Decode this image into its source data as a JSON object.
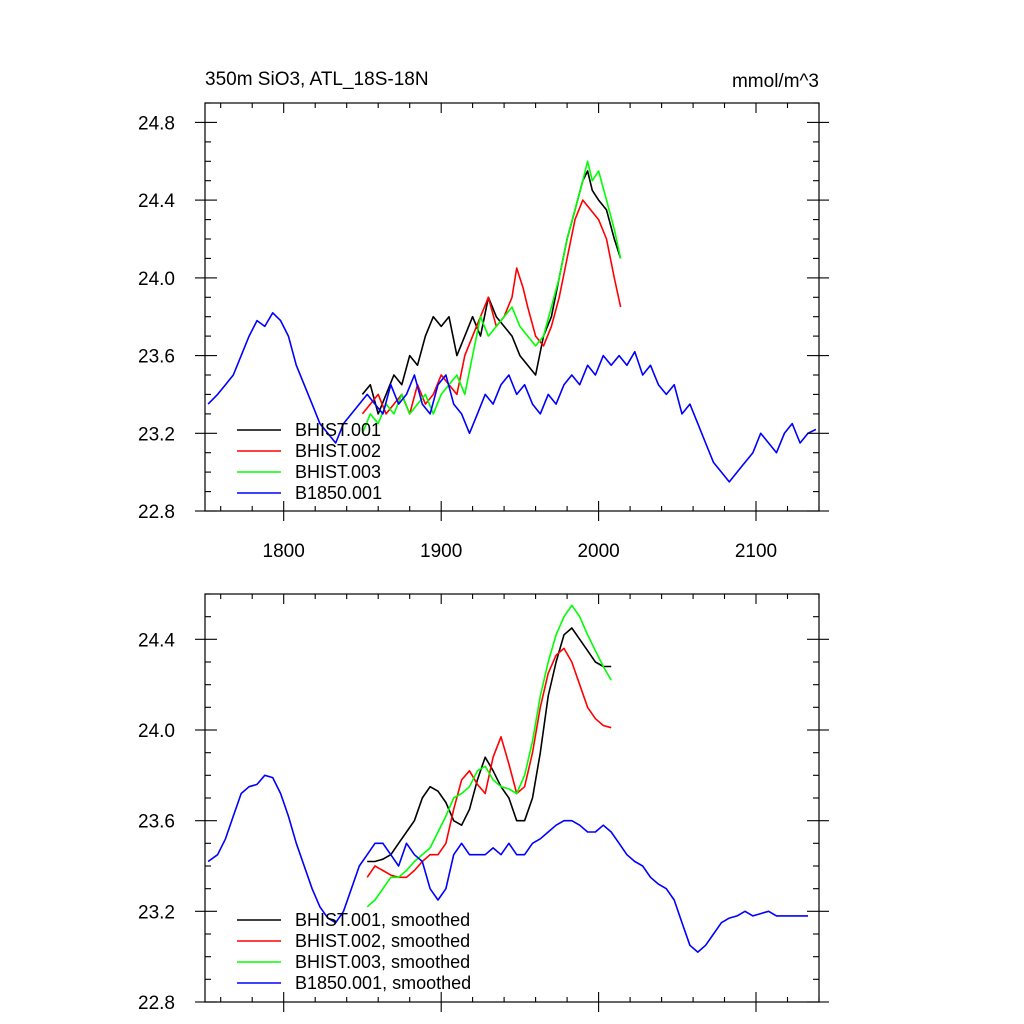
{
  "chart_data": [
    {
      "type": "line",
      "title": "350m SiO3, ATL_18S-18N",
      "units": "mmol/m^3",
      "xlabel": "",
      "ylabel": "",
      "xlim": [
        1750,
        2140
      ],
      "ylim": [
        22.8,
        24.9
      ],
      "xticks": [
        1800,
        1900,
        2000,
        2100
      ],
      "xtick_labels": [
        "1800",
        "1900",
        "2000",
        "2100"
      ],
      "yticks": [
        22.8,
        23.2,
        23.6,
        24.0,
        24.4,
        24.8
      ],
      "ytick_labels": [
        "22.8",
        "23.2",
        "23.6",
        "24.0",
        "24.4",
        "24.8"
      ],
      "show_xtick_labels": true,
      "legend_position": "bottom-left",
      "grid": false,
      "series": [
        {
          "name": "BHIST.001",
          "color": "#000000",
          "x": [
            1850,
            1855,
            1860,
            1865,
            1870,
            1875,
            1880,
            1885,
            1890,
            1895,
            1900,
            1905,
            1910,
            1915,
            1920,
            1925,
            1930,
            1935,
            1940,
            1945,
            1950,
            1955,
            1960,
            1965,
            1970,
            1975,
            1980,
            1985,
            1990,
            1993,
            1996,
            2000,
            2005,
            2010,
            2014
          ],
          "y": [
            23.4,
            23.45,
            23.3,
            23.4,
            23.5,
            23.45,
            23.6,
            23.55,
            23.7,
            23.8,
            23.75,
            23.8,
            23.6,
            23.7,
            23.8,
            23.7,
            23.9,
            23.8,
            23.75,
            23.7,
            23.6,
            23.55,
            23.5,
            23.7,
            23.8,
            24.0,
            24.2,
            24.35,
            24.5,
            24.55,
            24.45,
            24.4,
            24.35,
            24.2,
            24.1
          ]
        },
        {
          "name": "BHIST.002",
          "color": "#ff0000",
          "x": [
            1850,
            1855,
            1860,
            1865,
            1870,
            1875,
            1880,
            1885,
            1890,
            1895,
            1900,
            1905,
            1910,
            1915,
            1920,
            1925,
            1930,
            1935,
            1940,
            1945,
            1948,
            1952,
            1955,
            1960,
            1965,
            1970,
            1975,
            1980,
            1985,
            1990,
            1995,
            2000,
            2005,
            2010,
            2014
          ],
          "y": [
            23.3,
            23.35,
            23.4,
            23.3,
            23.35,
            23.4,
            23.3,
            23.45,
            23.35,
            23.4,
            23.5,
            23.45,
            23.4,
            23.6,
            23.7,
            23.8,
            23.9,
            23.75,
            23.8,
            23.9,
            24.05,
            23.95,
            23.85,
            23.7,
            23.65,
            23.75,
            23.9,
            24.1,
            24.3,
            24.4,
            24.35,
            24.3,
            24.2,
            24.0,
            23.85
          ]
        },
        {
          "name": "BHIST.003",
          "color": "#00ff00",
          "x": [
            1850,
            1855,
            1860,
            1865,
            1870,
            1875,
            1880,
            1885,
            1890,
            1895,
            1900,
            1905,
            1910,
            1915,
            1920,
            1925,
            1930,
            1935,
            1940,
            1945,
            1950,
            1955,
            1960,
            1965,
            1970,
            1975,
            1980,
            1985,
            1990,
            1993,
            1996,
            2000,
            2005,
            2010,
            2014
          ],
          "y": [
            23.2,
            23.3,
            23.25,
            23.35,
            23.3,
            23.4,
            23.3,
            23.35,
            23.4,
            23.3,
            23.4,
            23.45,
            23.5,
            23.4,
            23.6,
            23.8,
            23.7,
            23.75,
            23.8,
            23.85,
            23.75,
            23.7,
            23.65,
            23.7,
            23.85,
            24.0,
            24.2,
            24.35,
            24.5,
            24.6,
            24.5,
            24.55,
            24.4,
            24.25,
            24.1
          ]
        },
        {
          "name": "B1850.001",
          "color": "#0000ff",
          "x": [
            1752,
            1758,
            1763,
            1768,
            1773,
            1778,
            1783,
            1788,
            1793,
            1798,
            1803,
            1808,
            1813,
            1818,
            1823,
            1828,
            1833,
            1838,
            1843,
            1848,
            1853,
            1858,
            1863,
            1868,
            1873,
            1878,
            1883,
            1888,
            1893,
            1898,
            1903,
            1908,
            1913,
            1918,
            1923,
            1928,
            1933,
            1938,
            1943,
            1948,
            1953,
            1958,
            1963,
            1968,
            1973,
            1978,
            1983,
            1988,
            1993,
            1998,
            2003,
            2008,
            2013,
            2018,
            2023,
            2028,
            2033,
            2038,
            2043,
            2048,
            2053,
            2058,
            2063,
            2068,
            2073,
            2078,
            2083,
            2088,
            2093,
            2098,
            2103,
            2108,
            2113,
            2118,
            2123,
            2128,
            2133,
            2138
          ],
          "y": [
            23.35,
            23.4,
            23.45,
            23.5,
            23.6,
            23.7,
            23.78,
            23.75,
            23.82,
            23.78,
            23.7,
            23.55,
            23.45,
            23.35,
            23.25,
            23.2,
            23.15,
            23.25,
            23.3,
            23.35,
            23.4,
            23.35,
            23.3,
            23.45,
            23.35,
            23.4,
            23.5,
            23.35,
            23.3,
            23.45,
            23.5,
            23.35,
            23.3,
            23.2,
            23.3,
            23.4,
            23.35,
            23.45,
            23.5,
            23.4,
            23.45,
            23.35,
            23.3,
            23.4,
            23.35,
            23.45,
            23.5,
            23.45,
            23.55,
            23.5,
            23.6,
            23.55,
            23.6,
            23.55,
            23.62,
            23.5,
            23.55,
            23.45,
            23.4,
            23.45,
            23.3,
            23.35,
            23.25,
            23.15,
            23.05,
            23.0,
            22.95,
            23.0,
            23.05,
            23.1,
            23.2,
            23.15,
            23.1,
            23.2,
            23.25,
            23.15,
            23.2,
            23.22
          ]
        }
      ],
      "legend": [
        {
          "label": "BHIST.001",
          "color": "#000000"
        },
        {
          "label": "BHIST.002",
          "color": "#ff0000"
        },
        {
          "label": "BHIST.003",
          "color": "#00ff00"
        },
        {
          "label": "B1850.001",
          "color": "#0000ff"
        }
      ]
    },
    {
      "type": "line",
      "title": "",
      "units": "",
      "xlabel": "",
      "ylabel": "",
      "xlim": [
        1750,
        2140
      ],
      "ylim": [
        22.8,
        24.6
      ],
      "xticks": [
        1800,
        1900,
        2000,
        2100
      ],
      "xtick_labels": [],
      "yticks": [
        22.8,
        23.2,
        23.6,
        24.0,
        24.4
      ],
      "ytick_labels": [
        "22.8",
        "23.2",
        "23.6",
        "24.0",
        "24.4"
      ],
      "show_xtick_labels": false,
      "legend_position": "bottom-left",
      "grid": false,
      "series": [
        {
          "name": "BHIST.001, smoothed",
          "color": "#000000",
          "x": [
            1853,
            1858,
            1863,
            1868,
            1873,
            1878,
            1883,
            1888,
            1893,
            1898,
            1903,
            1908,
            1913,
            1918,
            1923,
            1928,
            1933,
            1938,
            1943,
            1948,
            1953,
            1958,
            1963,
            1968,
            1973,
            1978,
            1983,
            1988,
            1993,
            1998,
            2003,
            2008
          ],
          "y": [
            23.42,
            23.42,
            23.43,
            23.45,
            23.5,
            23.55,
            23.6,
            23.7,
            23.75,
            23.73,
            23.68,
            23.6,
            23.58,
            23.65,
            23.78,
            23.88,
            23.82,
            23.75,
            23.7,
            23.6,
            23.6,
            23.7,
            23.9,
            24.15,
            24.3,
            24.42,
            24.45,
            24.4,
            24.35,
            24.3,
            24.28,
            24.28
          ]
        },
        {
          "name": "BHIST.002, smoothed",
          "color": "#ff0000",
          "x": [
            1853,
            1858,
            1863,
            1868,
            1873,
            1878,
            1883,
            1888,
            1893,
            1898,
            1903,
            1908,
            1913,
            1918,
            1923,
            1928,
            1933,
            1938,
            1943,
            1948,
            1953,
            1958,
            1963,
            1968,
            1973,
            1978,
            1983,
            1988,
            1993,
            1998,
            2003,
            2008
          ],
          "y": [
            23.35,
            23.4,
            23.38,
            23.36,
            23.35,
            23.35,
            23.38,
            23.42,
            23.45,
            23.45,
            23.5,
            23.65,
            23.78,
            23.82,
            23.76,
            23.72,
            23.88,
            23.97,
            23.85,
            23.72,
            23.75,
            23.9,
            24.1,
            24.25,
            24.33,
            24.36,
            24.3,
            24.2,
            24.1,
            24.05,
            24.02,
            24.01
          ]
        },
        {
          "name": "BHIST.003, smoothed",
          "color": "#00ff00",
          "x": [
            1853,
            1858,
            1863,
            1868,
            1873,
            1878,
            1883,
            1888,
            1893,
            1898,
            1903,
            1908,
            1913,
            1918,
            1923,
            1928,
            1933,
            1938,
            1943,
            1948,
            1953,
            1958,
            1963,
            1968,
            1973,
            1978,
            1983,
            1988,
            1993,
            1998,
            2003,
            2008
          ],
          "y": [
            23.22,
            23.25,
            23.3,
            23.35,
            23.35,
            23.38,
            23.42,
            23.45,
            23.48,
            23.55,
            23.62,
            23.7,
            23.72,
            23.75,
            23.82,
            23.84,
            23.78,
            23.75,
            23.74,
            23.72,
            23.8,
            23.95,
            24.15,
            24.3,
            24.42,
            24.5,
            24.55,
            24.5,
            24.42,
            24.35,
            24.28,
            24.22
          ]
        },
        {
          "name": "B1850.001, smoothed",
          "color": "#0000ff",
          "x": [
            1752,
            1758,
            1763,
            1768,
            1773,
            1778,
            1783,
            1788,
            1793,
            1798,
            1803,
            1808,
            1813,
            1818,
            1823,
            1828,
            1833,
            1838,
            1843,
            1848,
            1853,
            1858,
            1863,
            1868,
            1873,
            1878,
            1883,
            1888,
            1893,
            1898,
            1903,
            1908,
            1913,
            1918,
            1923,
            1928,
            1933,
            1938,
            1943,
            1948,
            1953,
            1958,
            1963,
            1968,
            1973,
            1978,
            1983,
            1988,
            1993,
            1998,
            2003,
            2008,
            2013,
            2018,
            2023,
            2028,
            2033,
            2038,
            2043,
            2048,
            2053,
            2058,
            2063,
            2068,
            2073,
            2078,
            2083,
            2088,
            2093,
            2098,
            2103,
            2108,
            2113,
            2118,
            2123,
            2128,
            2133
          ],
          "y": [
            23.42,
            23.45,
            23.52,
            23.62,
            23.72,
            23.75,
            23.76,
            23.8,
            23.79,
            23.72,
            23.62,
            23.5,
            23.4,
            23.3,
            23.22,
            23.17,
            23.15,
            23.2,
            23.3,
            23.4,
            23.45,
            23.5,
            23.5,
            23.45,
            23.4,
            23.5,
            23.45,
            23.42,
            23.3,
            23.25,
            23.3,
            23.45,
            23.5,
            23.45,
            23.45,
            23.45,
            23.48,
            23.45,
            23.5,
            23.45,
            23.45,
            23.5,
            23.52,
            23.55,
            23.58,
            23.6,
            23.6,
            23.58,
            23.55,
            23.55,
            23.58,
            23.55,
            23.5,
            23.45,
            23.42,
            23.4,
            23.35,
            23.32,
            23.3,
            23.25,
            23.15,
            23.05,
            23.02,
            23.05,
            23.1,
            23.15,
            23.17,
            23.18,
            23.2,
            23.18,
            23.19,
            23.2,
            23.18,
            23.18,
            23.18,
            23.18,
            23.18
          ]
        }
      ],
      "legend": [
        {
          "label": "BHIST.001, smoothed",
          "color": "#000000"
        },
        {
          "label": "BHIST.002, smoothed",
          "color": "#ff0000"
        },
        {
          "label": "BHIST.003, smoothed",
          "color": "#00ff00"
        },
        {
          "label": "B1850.001, smoothed",
          "color": "#0000ff"
        }
      ]
    }
  ]
}
